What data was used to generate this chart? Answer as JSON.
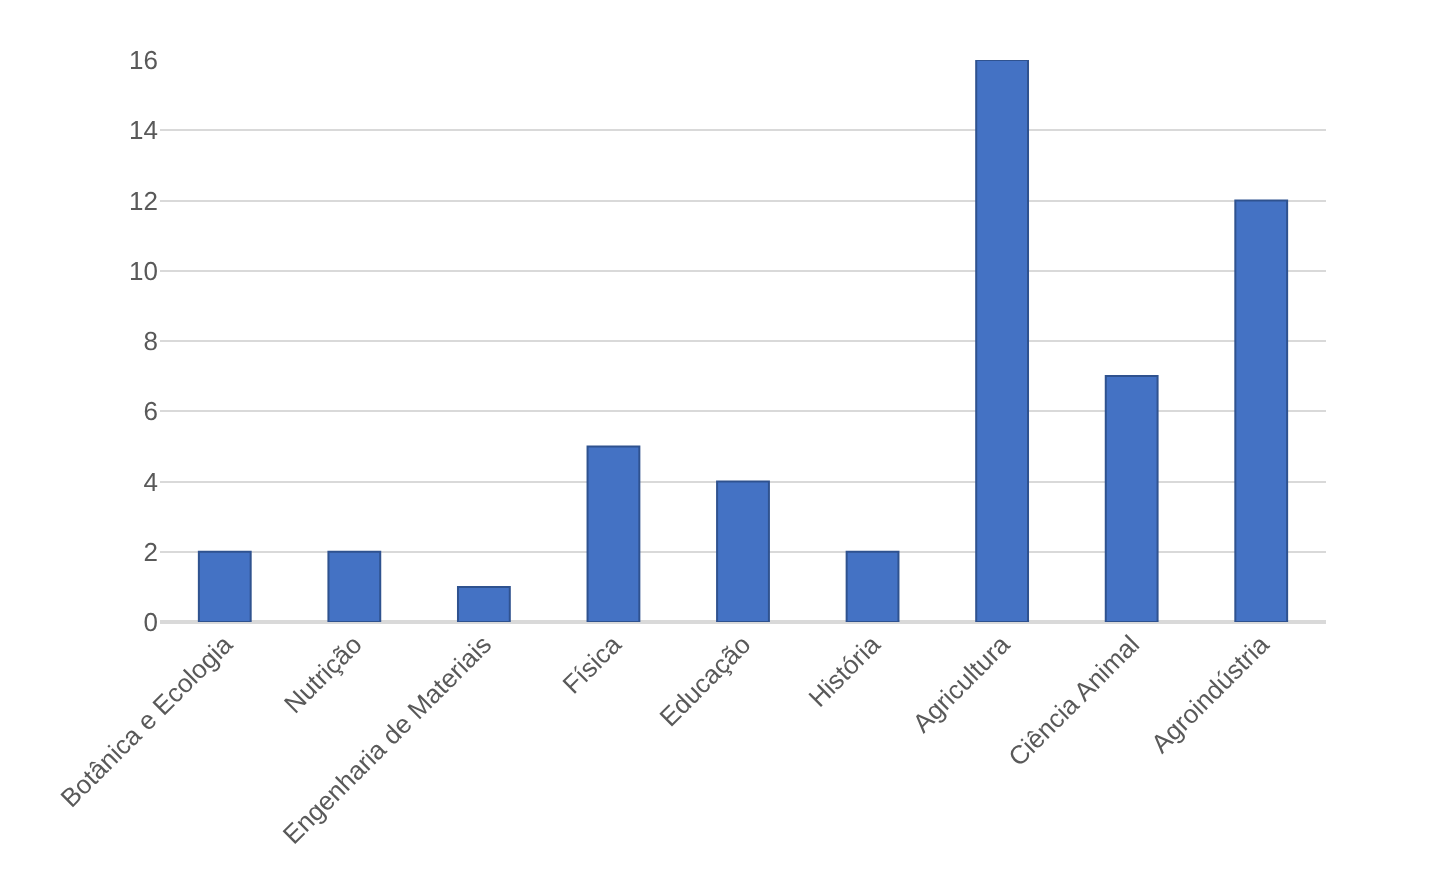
{
  "chart_data": {
    "type": "bar",
    "categories": [
      "Botânica e Ecologia",
      "Nutrição",
      "Engenharia de Materiais",
      "Física",
      "Educação",
      "História",
      "Agricultura",
      "Ciência Animal",
      "Agroindústria"
    ],
    "values": [
      2,
      2,
      1,
      5,
      4,
      2,
      16,
      7,
      12
    ],
    "color": "#4472c4",
    "ylim": [
      0,
      16
    ],
    "yticks": [
      0,
      2,
      4,
      6,
      8,
      10,
      12,
      14,
      16
    ],
    "grid": "y"
  }
}
